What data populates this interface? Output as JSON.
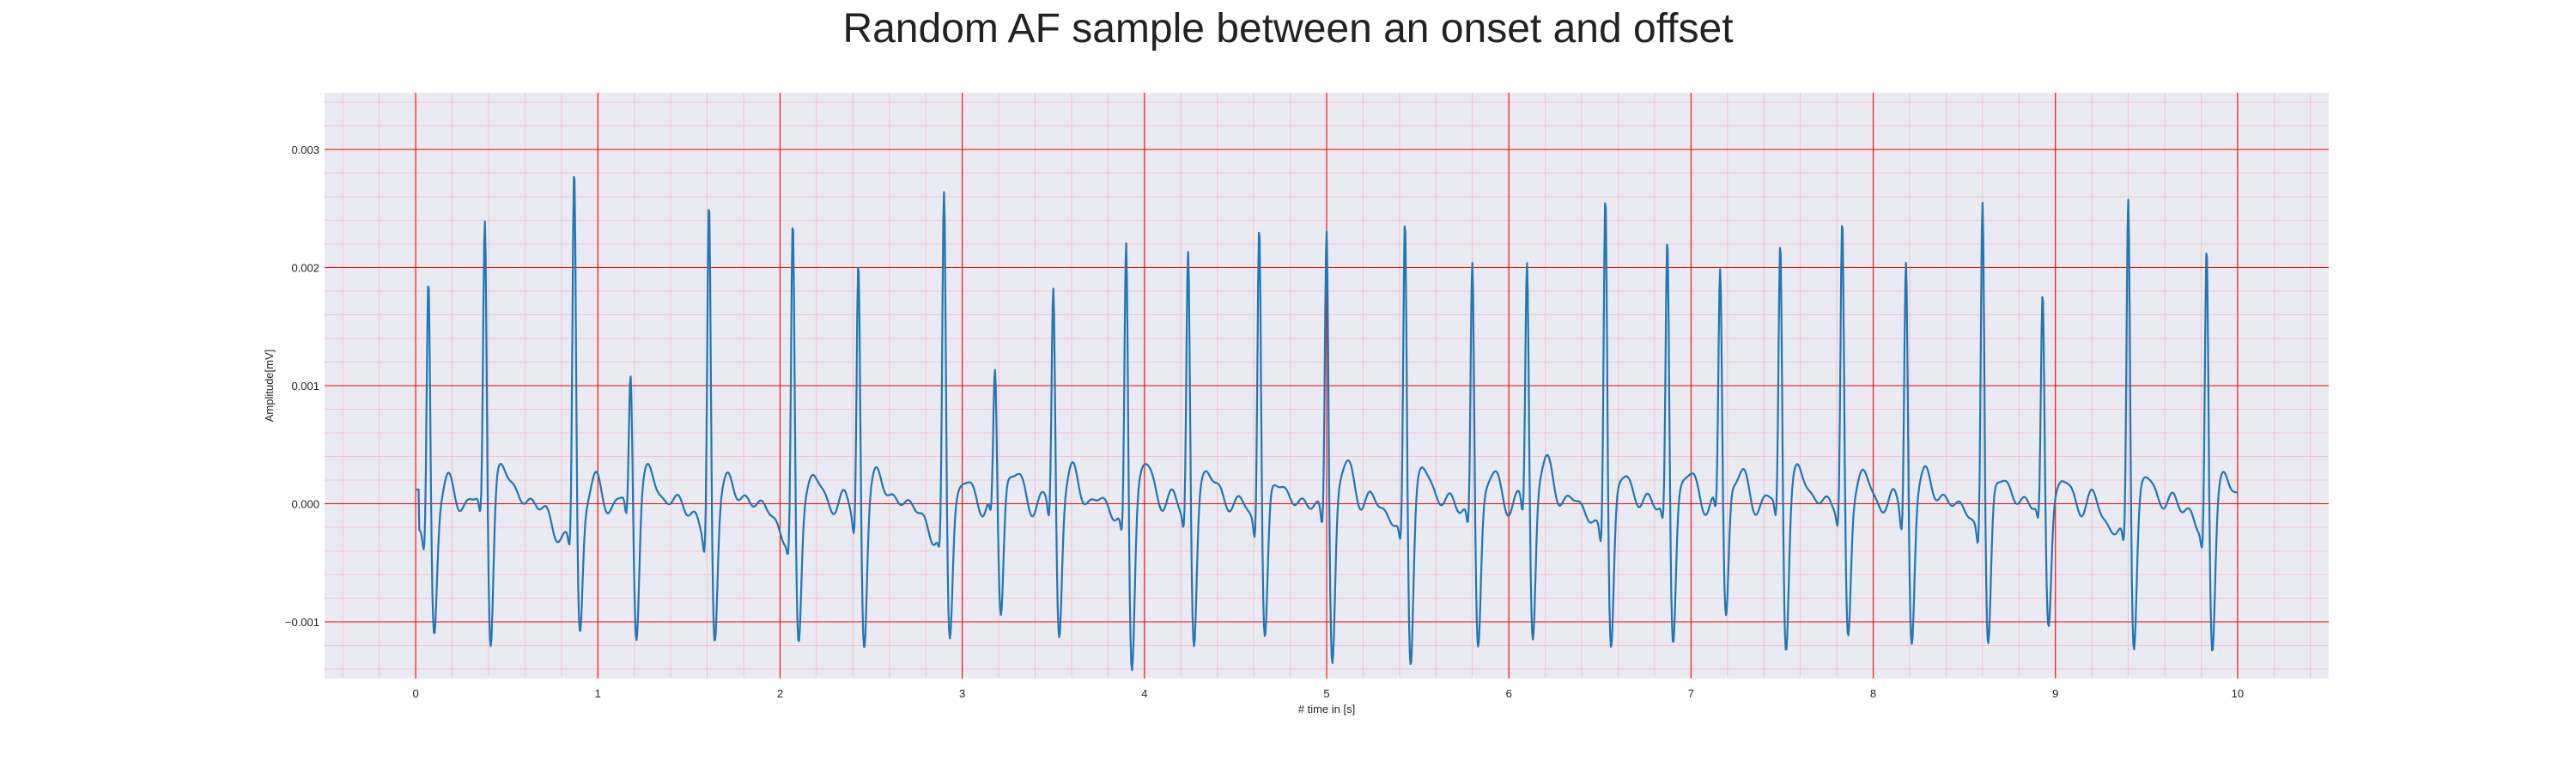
{
  "chart_data": {
    "type": "line",
    "title": "Random AF sample between an onset and offset",
    "xlabel": "# time in [s]",
    "ylabel": "Amplitude[mV]",
    "xlim": [
      -0.5,
      10.5
    ],
    "ylim": [
      -0.00148,
      0.00348
    ],
    "xticks": [
      0,
      1,
      2,
      3,
      4,
      5,
      6,
      7,
      8,
      9,
      10
    ],
    "yticks": [
      -0.001,
      0.0,
      0.001,
      0.002,
      0.003
    ],
    "ytick_labels": [
      "−0.001",
      "0.000",
      "0.001",
      "0.002",
      "0.003"
    ],
    "grid": true,
    "minor_grid": true,
    "background_color": "#eaeaf2",
    "grid_color": "#ff0000",
    "minor_grid_color": "#f4b8c6",
    "series": [
      {
        "color": "#1f77b4",
        "beats": [
          {
            "t": 0.07,
            "peak": 0.00232
          },
          {
            "t": 0.38,
            "peak": 0.0026
          },
          {
            "t": 0.87,
            "peak": 0.00325
          },
          {
            "t": 1.18,
            "peak": 0.00125
          },
          {
            "t": 1.61,
            "peak": 0.003
          },
          {
            "t": 2.07,
            "peak": 0.00275
          },
          {
            "t": 2.43,
            "peak": 0.00238
          },
          {
            "t": 2.9,
            "peak": 0.003
          },
          {
            "t": 3.18,
            "peak": 0.0012
          },
          {
            "t": 3.5,
            "peak": 0.00203
          },
          {
            "t": 3.9,
            "peak": 0.0026
          },
          {
            "t": 4.24,
            "peak": 0.00238
          },
          {
            "t": 4.63,
            "peak": 0.0028
          },
          {
            "t": 5.0,
            "peak": 0.0027
          },
          {
            "t": 5.43,
            "peak": 0.00285
          },
          {
            "t": 5.8,
            "peak": 0.00237
          },
          {
            "t": 6.1,
            "peak": 0.00222
          },
          {
            "t": 6.53,
            "peak": 0.0031
          },
          {
            "t": 6.87,
            "peak": 0.00245
          },
          {
            "t": 7.16,
            "peak": 0.0021
          },
          {
            "t": 7.49,
            "peak": 0.00245
          },
          {
            "t": 7.83,
            "peak": 0.0026
          },
          {
            "t": 8.18,
            "peak": 0.00239
          },
          {
            "t": 8.6,
            "peak": 0.00305
          },
          {
            "t": 8.93,
            "peak": 0.00193
          },
          {
            "t": 9.4,
            "peak": 0.00305
          },
          {
            "t": 9.83,
            "peak": 0.0026
          }
        ],
        "x_start": 0.0,
        "x_end": 10.0,
        "y_start": 0.00012,
        "y_end": -0.00025
      }
    ]
  }
}
